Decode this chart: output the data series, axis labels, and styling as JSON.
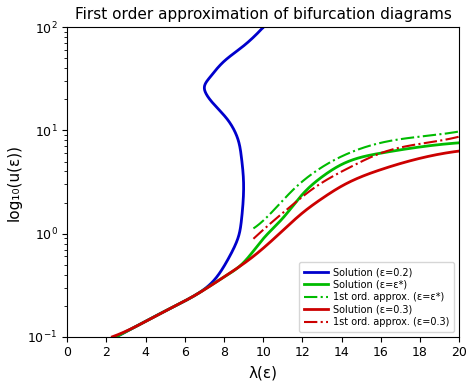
{
  "title": "First order approximation of bifurcation diagrams",
  "xlabel": "λ(ε)",
  "ylabel": "log₁₀(u(ε))",
  "xlim": [
    0,
    20
  ],
  "ylim_log": [
    0.1,
    100
  ],
  "xticks": [
    0,
    2,
    4,
    6,
    8,
    10,
    12,
    14,
    16,
    18,
    20
  ],
  "legend_entries": [
    {
      "label": "Solution (ε=0.2)",
      "color": "#0000cc",
      "ls": "solid",
      "lw": 2.0
    },
    {
      "label": "Solution (ε=ε*)",
      "color": "#00bb00",
      "ls": "solid",
      "lw": 2.0
    },
    {
      "label": "1st ord. approx. (ε=ε*)",
      "color": "#00bb00",
      "ls": "dashdot",
      "lw": 1.5
    },
    {
      "label": "Solution (ε=0.3)",
      "color": "#cc0000",
      "ls": "solid",
      "lw": 2.0
    },
    {
      "label": "1st ord. approx. (ε=0.3)",
      "color": "#cc0000",
      "ls": "dashdot",
      "lw": 1.5
    }
  ],
  "eps_02_color": "#0000cc",
  "eps_star_color": "#00bb00",
  "eps_03_color": "#cc0000",
  "background_color": "#ffffff",
  "blue_lam": [
    2.5,
    3.5,
    5.0,
    6.5,
    7.5,
    8.2,
    8.7,
    8.9,
    9.0,
    8.9,
    8.7,
    8.2,
    7.5,
    7.0,
    7.3,
    8.0,
    9.0,
    9.8,
    10.0
  ],
  "blue_logu": [
    -1.0,
    -0.9,
    -0.75,
    -0.6,
    -0.45,
    -0.25,
    -0.05,
    0.15,
    0.45,
    0.72,
    0.92,
    1.1,
    1.25,
    1.4,
    1.52,
    1.67,
    1.82,
    1.96,
    2.0
  ],
  "green_lam": [
    2.5,
    3.5,
    5.0,
    6.5,
    8.0,
    9.0,
    10.0,
    11.0,
    12.0,
    13.0,
    14.0,
    16.0,
    18.0,
    20.0
  ],
  "green_logu": [
    -1.0,
    -0.9,
    -0.75,
    -0.6,
    -0.42,
    -0.28,
    -0.05,
    0.15,
    0.38,
    0.55,
    0.67,
    0.78,
    0.84,
    0.88
  ],
  "green_approx_lam": [
    9.5,
    10.5,
    11.5,
    12.5,
    13.5,
    14.5,
    16.0,
    18.0,
    20.0
  ],
  "green_approx_logu": [
    0.05,
    0.22,
    0.42,
    0.58,
    0.7,
    0.79,
    0.88,
    0.94,
    0.99
  ],
  "red_lam": [
    2.3,
    3.5,
    5.0,
    6.5,
    8.0,
    9.5,
    11.0,
    12.0,
    13.0,
    14.0,
    16.0,
    18.0,
    20.0
  ],
  "red_logu": [
    -1.0,
    -0.9,
    -0.75,
    -0.6,
    -0.42,
    -0.22,
    0.03,
    0.2,
    0.34,
    0.46,
    0.62,
    0.73,
    0.8
  ],
  "red_approx_lam": [
    9.5,
    10.5,
    11.5,
    12.5,
    13.5,
    14.5,
    16.0,
    18.0,
    20.0
  ],
  "red_approx_logu": [
    -0.05,
    0.12,
    0.28,
    0.43,
    0.55,
    0.65,
    0.78,
    0.87,
    0.94
  ]
}
